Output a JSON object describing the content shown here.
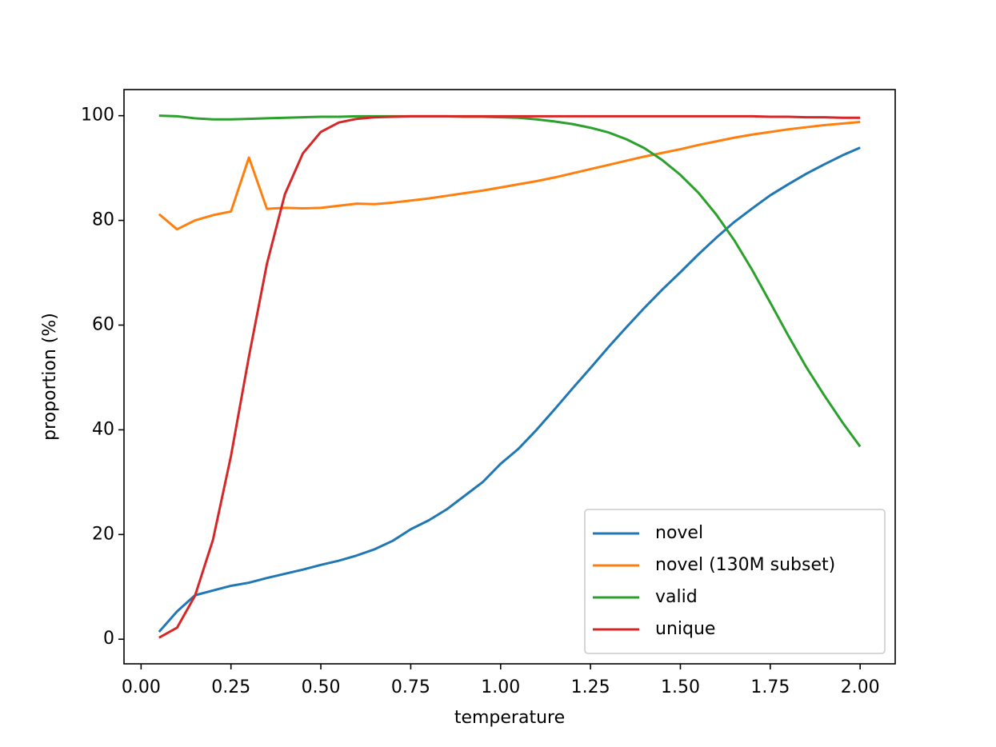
{
  "chart_data": {
    "type": "line",
    "xlabel": "temperature",
    "ylabel": "proportion (%)",
    "x": [
      0.05,
      0.1,
      0.15,
      0.2,
      0.25,
      0.3,
      0.35,
      0.4,
      0.45,
      0.5,
      0.55,
      0.6,
      0.65,
      0.7,
      0.75,
      0.8,
      0.85,
      0.9,
      0.95,
      1.0,
      1.05,
      1.1,
      1.15,
      1.2,
      1.25,
      1.3,
      1.35,
      1.4,
      1.45,
      1.5,
      1.55,
      1.6,
      1.65,
      1.7,
      1.75,
      1.8,
      1.85,
      1.9,
      1.95,
      2.0
    ],
    "series": [
      {
        "name": "novel",
        "color": "#1f77b4",
        "values": [
          1.4,
          5.3,
          8.4,
          9.3,
          10.2,
          10.8,
          11.7,
          12.5,
          13.3,
          14.2,
          15.0,
          16.0,
          17.2,
          18.8,
          21.0,
          22.7,
          24.8,
          27.4,
          30.0,
          33.5,
          36.4,
          40.0,
          43.9,
          47.9,
          51.8,
          55.8,
          59.6,
          63.3,
          66.8,
          70.1,
          73.5,
          76.7,
          79.7,
          82.3,
          84.8,
          86.9,
          88.9,
          90.7,
          92.4,
          93.9
        ]
      },
      {
        "name": "novel (130M subset)",
        "color": "#ff7f0e",
        "values": [
          81.2,
          78.3,
          80.0,
          81.0,
          81.7,
          92.0,
          82.2,
          82.4,
          82.3,
          82.4,
          82.8,
          83.2,
          83.1,
          83.4,
          83.8,
          84.2,
          84.7,
          85.2,
          85.7,
          86.3,
          86.9,
          87.5,
          88.2,
          89.0,
          89.8,
          90.6,
          91.4,
          92.2,
          92.9,
          93.6,
          94.4,
          95.1,
          95.8,
          96.4,
          96.9,
          97.4,
          97.8,
          98.2,
          98.5,
          98.8
        ]
      },
      {
        "name": "valid",
        "color": "#2ca02c",
        "values": [
          100,
          99.9,
          99.5,
          99.3,
          99.3,
          99.4,
          99.5,
          99.6,
          99.7,
          99.8,
          99.8,
          99.9,
          99.9,
          99.9,
          99.9,
          99.9,
          99.9,
          99.8,
          99.8,
          99.7,
          99.6,
          99.3,
          98.9,
          98.4,
          97.7,
          96.8,
          95.5,
          93.8,
          91.5,
          88.7,
          85.3,
          81.1,
          76.2,
          70.5,
          64.3,
          58.0,
          52.0,
          46.6,
          41.5,
          36.8
        ]
      },
      {
        "name": "unique",
        "color": "#d62728",
        "values": [
          0.3,
          2.2,
          8.3,
          19.0,
          35.0,
          54.0,
          71.7,
          85.0,
          92.8,
          96.9,
          98.7,
          99.4,
          99.7,
          99.8,
          99.9,
          99.9,
          99.9,
          99.9,
          99.9,
          99.9,
          99.9,
          99.9,
          99.9,
          99.9,
          99.9,
          99.9,
          99.9,
          99.9,
          99.9,
          99.9,
          99.9,
          99.9,
          99.9,
          99.9,
          99.8,
          99.8,
          99.7,
          99.7,
          99.6,
          99.6
        ]
      }
    ],
    "xlim": [
      -0.0475,
      2.0975
    ],
    "ylim": [
      -4.7,
      104.99
    ],
    "xticks": [
      {
        "value": 0,
        "label": "0.00"
      },
      {
        "value": 0.25,
        "label": "0.25"
      },
      {
        "value": 0.5,
        "label": "0.50"
      },
      {
        "value": 0.75,
        "label": "0.75"
      },
      {
        "value": 1,
        "label": "1.00"
      },
      {
        "value": 1.25,
        "label": "1.25"
      },
      {
        "value": 1.5,
        "label": "1.50"
      },
      {
        "value": 1.75,
        "label": "1.75"
      },
      {
        "value": 2,
        "label": "2.00"
      }
    ],
    "yticks": [
      0,
      20,
      40,
      60,
      80,
      100
    ],
    "legend": "lower right"
  }
}
